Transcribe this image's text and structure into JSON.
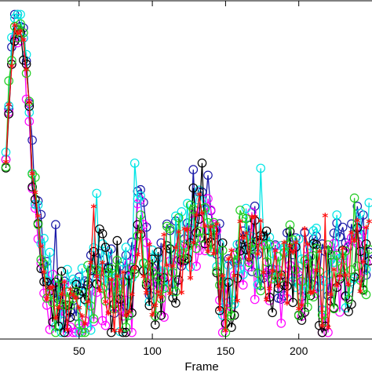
{
  "chart_data": {
    "type": "line",
    "title": "",
    "xlabel": "Frame",
    "ylabel": "",
    "xlim": [
      -4,
      250
    ],
    "ylim": [
      0,
      1
    ],
    "x_ticks": [
      50,
      100,
      150,
      200
    ],
    "x_tick_labels": [
      "50",
      "100",
      "150",
      "200"
    ],
    "grid": false,
    "legend": "none",
    "anchors": {
      "x": [
        0,
        3,
        6,
        9,
        11,
        13,
        16,
        19,
        23,
        27,
        30,
        35,
        42,
        50,
        58,
        62,
        66,
        72,
        78,
        86,
        90,
        95,
        100,
        108,
        115,
        122,
        130,
        136,
        140,
        145,
        150,
        155,
        160,
        165,
        172,
        180,
        188,
        195,
        202,
        210,
        218,
        226,
        232,
        240,
        245
      ],
      "y": [
        0.55,
        0.78,
        0.92,
        0.95,
        0.93,
        0.85,
        0.65,
        0.45,
        0.3,
        0.18,
        0.12,
        0.09,
        0.08,
        0.07,
        0.1,
        0.2,
        0.18,
        0.12,
        0.1,
        0.14,
        0.35,
        0.24,
        0.14,
        0.2,
        0.22,
        0.25,
        0.3,
        0.36,
        0.3,
        0.22,
        0.08,
        0.15,
        0.22,
        0.28,
        0.24,
        0.2,
        0.16,
        0.24,
        0.14,
        0.2,
        0.1,
        0.22,
        0.16,
        0.26,
        0.22
      ]
    },
    "series": [
      {
        "color": "#1a1aa8",
        "marker": "circle",
        "values_offset": 0.05
      },
      {
        "color": "#ff00ff",
        "marker": "circle",
        "values_offset": -0.02
      },
      {
        "color": "#00e5e5",
        "marker": "circle",
        "values_offset": 0.04
      },
      {
        "color": "#000000",
        "marker": "circle",
        "values_offset": 0.0
      },
      {
        "color": "#22cc22",
        "marker": "circle",
        "values_offset": 0.02
      },
      {
        "color": "#ff1010",
        "marker": "asterisk",
        "values_offset": 0.01
      }
    ]
  }
}
